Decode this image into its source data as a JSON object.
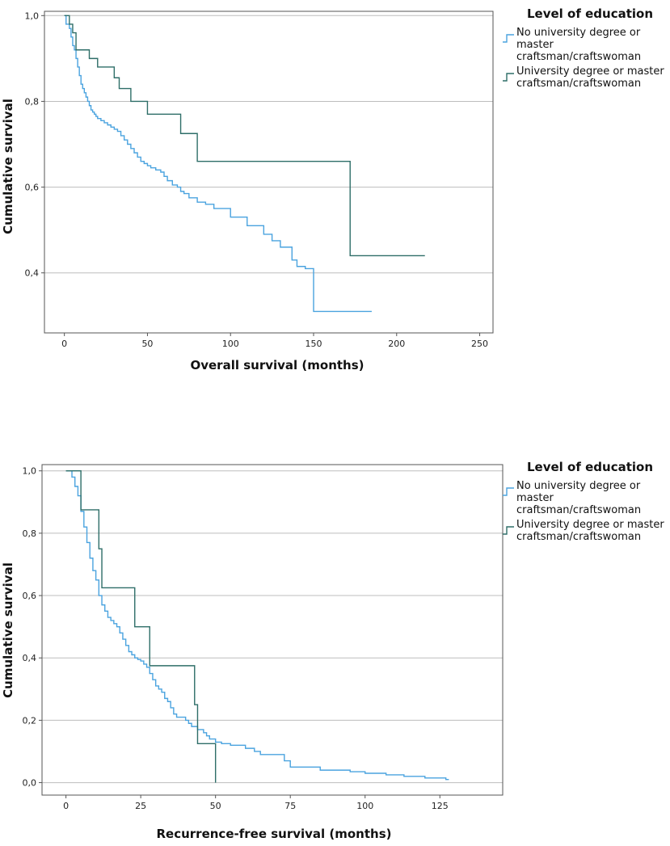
{
  "chart_data": [
    {
      "type": "line",
      "subtype": "kaplan-meier step",
      "xlabel": "Overall survival (months)",
      "ylabel": "Cumulative survival",
      "xlim": [
        -12,
        258
      ],
      "ylim": [
        0.26,
        1.01
      ],
      "xticks": [
        "0",
        "50",
        "100",
        "150",
        "200",
        "250"
      ],
      "xtick_values": [
        0,
        50,
        100,
        150,
        200,
        250
      ],
      "yticks": [
        "0,4",
        "0,6",
        "0,8",
        "1,0"
      ],
      "ytick_values": [
        0.4,
        0.6,
        0.8,
        1.0
      ],
      "grid": "horizontal",
      "legend": {
        "title": "Level of education",
        "entries": [
          {
            "lines": [
              "No university degree or",
              "master",
              "craftsman/craftswoman"
            ],
            "color": "#4aa3df"
          },
          {
            "lines": [
              "University degree or master",
              "craftsman/craftswoman"
            ],
            "color": "#2e6e68"
          }
        ]
      },
      "series": [
        {
          "name": "No university degree or master craftsman/craftswoman",
          "color": "#4aa3df",
          "x": [
            0,
            1,
            3,
            4,
            5,
            6,
            7,
            8,
            9,
            10,
            11,
            12,
            13,
            14,
            15,
            16,
            17,
            18,
            19,
            20,
            22,
            24,
            26,
            28,
            30,
            32,
            34,
            36,
            38,
            40,
            42,
            44,
            46,
            48,
            50,
            52,
            55,
            58,
            60,
            62,
            65,
            68,
            70,
            72,
            75,
            80,
            85,
            90,
            100,
            110,
            120,
            125,
            130,
            137,
            140,
            145,
            148,
            150,
            185
          ],
          "y": [
            1.0,
            0.98,
            0.97,
            0.95,
            0.93,
            0.92,
            0.9,
            0.88,
            0.86,
            0.84,
            0.83,
            0.82,
            0.81,
            0.8,
            0.79,
            0.78,
            0.775,
            0.77,
            0.765,
            0.76,
            0.755,
            0.75,
            0.745,
            0.74,
            0.735,
            0.73,
            0.72,
            0.71,
            0.7,
            0.69,
            0.68,
            0.67,
            0.66,
            0.655,
            0.65,
            0.645,
            0.64,
            0.635,
            0.625,
            0.615,
            0.605,
            0.6,
            0.59,
            0.585,
            0.575,
            0.565,
            0.56,
            0.55,
            0.53,
            0.51,
            0.49,
            0.475,
            0.46,
            0.43,
            0.415,
            0.41,
            0.41,
            0.31,
            0.31
          ]
        },
        {
          "name": "University degree or master craftsman/craftswoman",
          "color": "#2e6e68",
          "x": [
            0,
            3,
            5,
            7,
            15,
            20,
            30,
            33,
            35,
            40,
            45,
            50,
            55,
            60,
            65,
            70,
            75,
            80,
            85,
            150,
            172,
            180,
            217
          ],
          "y": [
            1.0,
            0.98,
            0.96,
            0.92,
            0.9,
            0.88,
            0.855,
            0.83,
            0.83,
            0.8,
            0.8,
            0.77,
            0.77,
            0.77,
            0.77,
            0.725,
            0.725,
            0.66,
            0.66,
            0.66,
            0.44,
            0.44,
            0.44
          ]
        }
      ]
    },
    {
      "type": "line",
      "subtype": "kaplan-meier step",
      "xlabel": "Recurrence-free survival (months)",
      "ylabel": "Cumulative survival",
      "xlim": [
        -8,
        146
      ],
      "ylim": [
        -0.04,
        1.02
      ],
      "xticks": [
        "0",
        "25",
        "50",
        "75",
        "100",
        "125"
      ],
      "xtick_values": [
        0,
        25,
        50,
        75,
        100,
        125
      ],
      "yticks": [
        "0,0",
        "0,2",
        "0,4",
        "0,6",
        "0,8",
        "1,0"
      ],
      "ytick_values": [
        0.0,
        0.2,
        0.4,
        0.6,
        0.8,
        1.0
      ],
      "grid": "horizontal",
      "legend": {
        "title": "Level of education",
        "entries": [
          {
            "lines": [
              "No university degree or",
              "master",
              "craftsman/craftswoman"
            ],
            "color": "#4aa3df"
          },
          {
            "lines": [
              "University degree or master",
              "craftsman/craftswoman"
            ],
            "color": "#2e6e68"
          }
        ]
      },
      "series": [
        {
          "name": "No university degree or master craftsman/craftswoman",
          "color": "#4aa3df",
          "x": [
            0,
            2,
            3,
            4,
            5,
            6,
            7,
            8,
            9,
            10,
            11,
            12,
            13,
            14,
            15,
            16,
            17,
            18,
            19,
            20,
            21,
            22,
            23,
            24,
            25,
            26,
            27,
            28,
            29,
            30,
            31,
            32,
            33,
            34,
            35,
            36,
            37,
            38,
            39,
            40,
            41,
            42,
            44,
            46,
            47,
            48,
            50,
            52,
            55,
            60,
            63,
            65,
            70,
            73,
            75,
            85,
            95,
            100,
            107,
            113,
            120,
            127,
            128
          ],
          "y": [
            1.0,
            0.98,
            0.95,
            0.92,
            0.87,
            0.82,
            0.77,
            0.72,
            0.68,
            0.65,
            0.6,
            0.57,
            0.55,
            0.53,
            0.52,
            0.51,
            0.5,
            0.48,
            0.46,
            0.44,
            0.42,
            0.41,
            0.4,
            0.395,
            0.39,
            0.38,
            0.37,
            0.35,
            0.33,
            0.31,
            0.3,
            0.29,
            0.27,
            0.26,
            0.24,
            0.22,
            0.21,
            0.21,
            0.21,
            0.2,
            0.19,
            0.18,
            0.17,
            0.16,
            0.15,
            0.14,
            0.13,
            0.125,
            0.12,
            0.11,
            0.1,
            0.09,
            0.09,
            0.07,
            0.05,
            0.04,
            0.035,
            0.03,
            0.025,
            0.02,
            0.015,
            0.01,
            0.01
          ]
        },
        {
          "name": "University degree or master craftsman/craftswoman",
          "color": "#2e6e68",
          "x": [
            0,
            5,
            6,
            11,
            12,
            13,
            23,
            28,
            43,
            44,
            50
          ],
          "y": [
            1.0,
            0.875,
            0.875,
            0.75,
            0.625,
            0.625,
            0.5,
            0.375,
            0.25,
            0.125,
            0.0
          ]
        }
      ]
    }
  ]
}
